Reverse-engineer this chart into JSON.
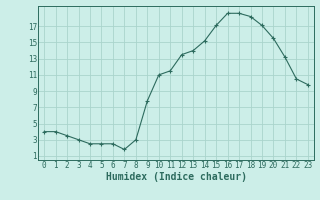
{
  "x": [
    0,
    1,
    2,
    3,
    4,
    5,
    6,
    7,
    8,
    9,
    10,
    11,
    12,
    13,
    14,
    15,
    16,
    17,
    18,
    19,
    20,
    21,
    22,
    23
  ],
  "y": [
    4.0,
    4.0,
    3.5,
    3.0,
    2.5,
    2.5,
    2.5,
    1.8,
    3.0,
    7.8,
    11.0,
    11.5,
    13.5,
    14.0,
    15.2,
    17.1,
    18.6,
    18.6,
    18.2,
    17.1,
    15.5,
    13.2,
    10.5,
    9.8
  ],
  "line_color": "#2d6b5e",
  "marker": "+",
  "bg_color": "#cceee8",
  "grid_major_color": "#aad4cc",
  "grid_minor_color": "#bdddd8",
  "xlabel": "Humidex (Indice chaleur)",
  "xlim": [
    -0.5,
    23.5
  ],
  "ylim": [
    0.5,
    19.5
  ],
  "yticks": [
    1,
    3,
    5,
    7,
    9,
    11,
    13,
    15,
    17
  ],
  "xticks": [
    0,
    1,
    2,
    3,
    4,
    5,
    6,
    7,
    8,
    9,
    10,
    11,
    12,
    13,
    14,
    15,
    16,
    17,
    18,
    19,
    20,
    21,
    22,
    23
  ],
  "tick_label_fontsize": 5.5,
  "xlabel_fontsize": 7,
  "axis_color": "#2d6b5e",
  "spine_color": "#2d6b5e"
}
